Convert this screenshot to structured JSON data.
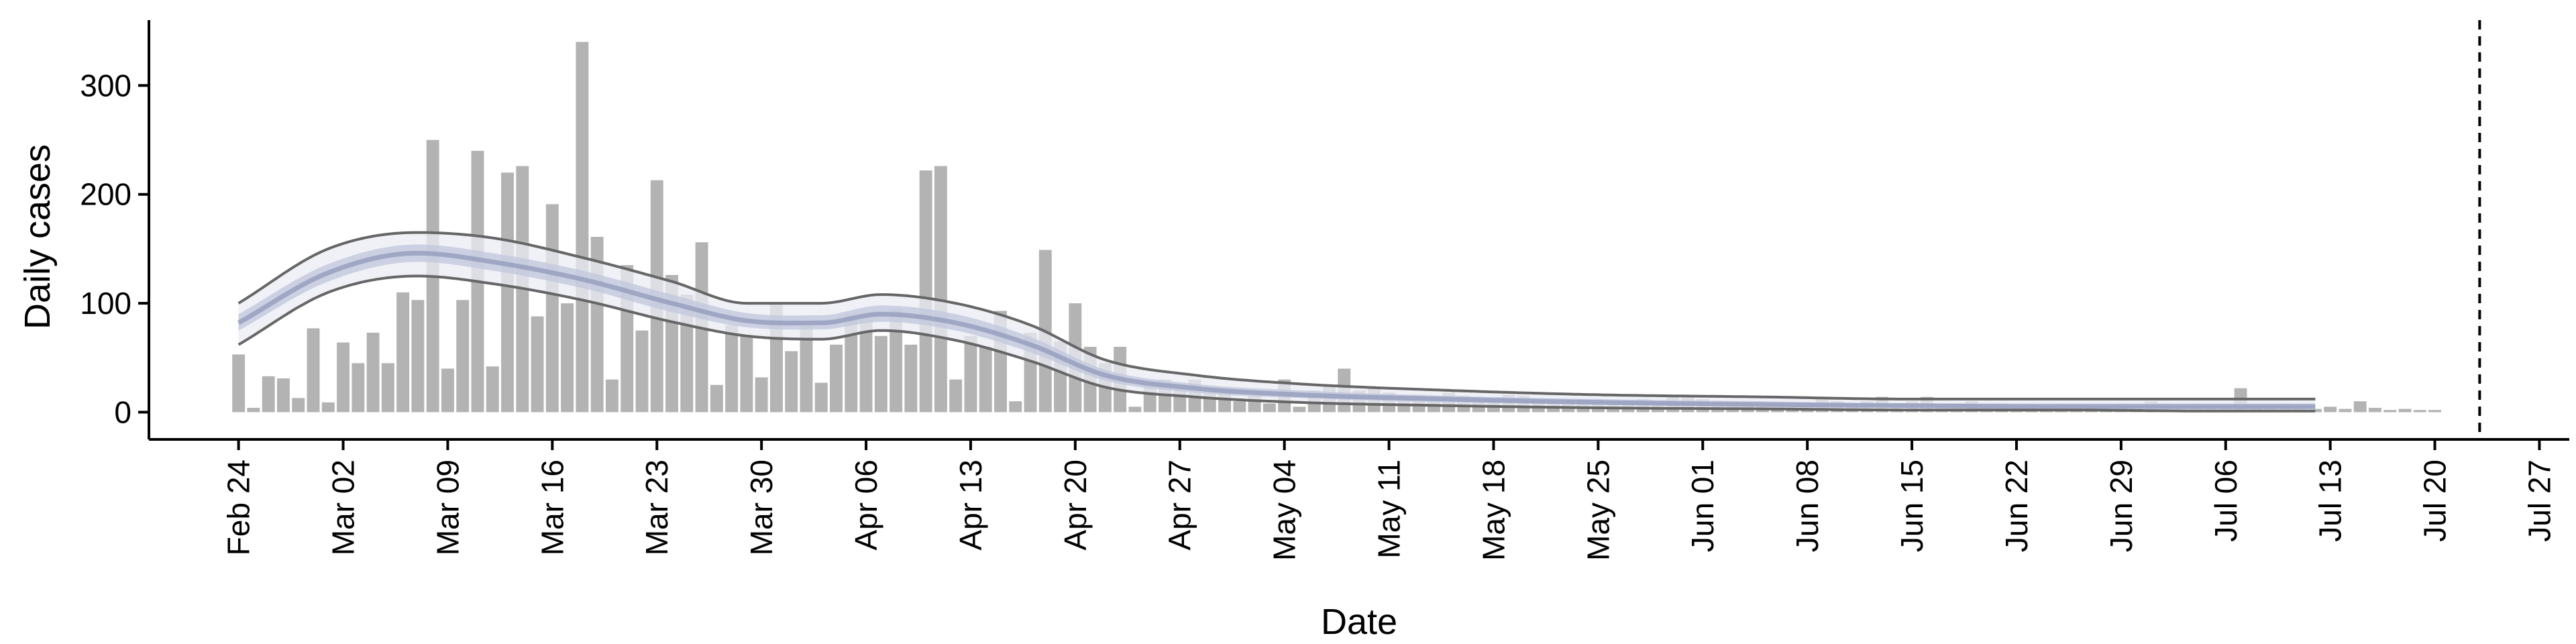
{
  "chart_data": {
    "type": "bar",
    "title": "",
    "xlabel": "Date",
    "ylabel": "Daily cases",
    "ylim": [
      -25,
      360
    ],
    "xlim": [
      "2020-02-18",
      "2020-07-29"
    ],
    "y_ticks": [
      0,
      100,
      200,
      300
    ],
    "x_ticks": [
      {
        "date": "2020-02-24",
        "label": "Feb 24"
      },
      {
        "date": "2020-03-02",
        "label": "Mar 02"
      },
      {
        "date": "2020-03-09",
        "label": "Mar 09"
      },
      {
        "date": "2020-03-16",
        "label": "Mar 16"
      },
      {
        "date": "2020-03-23",
        "label": "Mar 23"
      },
      {
        "date": "2020-03-30",
        "label": "Mar 30"
      },
      {
        "date": "2020-04-06",
        "label": "Apr 06"
      },
      {
        "date": "2020-04-13",
        "label": "Apr 13"
      },
      {
        "date": "2020-04-20",
        "label": "Apr 20"
      },
      {
        "date": "2020-04-27",
        "label": "Apr 27"
      },
      {
        "date": "2020-05-04",
        "label": "May 04"
      },
      {
        "date": "2020-05-11",
        "label": "May 11"
      },
      {
        "date": "2020-05-18",
        "label": "May 18"
      },
      {
        "date": "2020-05-25",
        "label": "May 25"
      },
      {
        "date": "2020-06-01",
        "label": "Jun 01"
      },
      {
        "date": "2020-06-08",
        "label": "Jun 08"
      },
      {
        "date": "2020-06-15",
        "label": "Jun 15"
      },
      {
        "date": "2020-06-22",
        "label": "Jun 22"
      },
      {
        "date": "2020-06-29",
        "label": "Jun 29"
      },
      {
        "date": "2020-07-06",
        "label": "Jul 06"
      },
      {
        "date": "2020-07-13",
        "label": "Jul 13"
      },
      {
        "date": "2020-07-20",
        "label": "Jul 20"
      },
      {
        "date": "2020-07-27",
        "label": "Jul 27"
      }
    ],
    "bars": {
      "start_date": "2020-02-24",
      "color": "#b3b3b3",
      "values": [
        53,
        4,
        33,
        31,
        13,
        77,
        9,
        64,
        45,
        73,
        45,
        110,
        103,
        250,
        40,
        103,
        240,
        42,
        220,
        226,
        88,
        191,
        100,
        340,
        161,
        30,
        135,
        75,
        213,
        126,
        108,
        156,
        25,
        80,
        70,
        32,
        100,
        56,
        80,
        27,
        62,
        90,
        85,
        70,
        95,
        62,
        222,
        226,
        30,
        70,
        60,
        93,
        10,
        73,
        149,
        65,
        100,
        60,
        45,
        60,
        5,
        25,
        30,
        22,
        30,
        20,
        20,
        10,
        15,
        8,
        30,
        5,
        20,
        25,
        40,
        20,
        22,
        18,
        15,
        16,
        12,
        18,
        15,
        10,
        12,
        16,
        15,
        12,
        10,
        10,
        12,
        10,
        10,
        8,
        12,
        10,
        16,
        14,
        12,
        8,
        10,
        8,
        10,
        8,
        7,
        8,
        12,
        10,
        8,
        10,
        14,
        8,
        10,
        14,
        6,
        8,
        10,
        6,
        8,
        5,
        8,
        6,
        8,
        7,
        5,
        6,
        8,
        6,
        10,
        8,
        6,
        8,
        5,
        4,
        22,
        4,
        5,
        8,
        5,
        3,
        5,
        3,
        10,
        4,
        2,
        3,
        2,
        2
      ]
    },
    "estimate": {
      "start_date": "2020-02-24",
      "end_date": "2020-07-12",
      "median_color": "#8d96b8",
      "inner_band_color": "#c2c8dc",
      "outer_band_color": "#e9ecf4",
      "bound_line_color": "#666666",
      "anchors_x": [
        "2020-02-24",
        "2020-03-01",
        "2020-03-07",
        "2020-03-12",
        "2020-03-18",
        "2020-03-24",
        "2020-03-29",
        "2020-04-03",
        "2020-04-07",
        "2020-04-12",
        "2020-04-17",
        "2020-04-22",
        "2020-04-28",
        "2020-05-05",
        "2020-05-15",
        "2020-05-25",
        "2020-06-05",
        "2020-06-15",
        "2020-06-25",
        "2020-07-05",
        "2020-07-12"
      ],
      "median": [
        82,
        128,
        146,
        138,
        122,
        100,
        84,
        82,
        90,
        82,
        62,
        34,
        22,
        16,
        12,
        9,
        7,
        6,
        5,
        5,
        5
      ],
      "inner_lo": [
        75,
        120,
        138,
        130,
        114,
        92,
        78,
        76,
        83,
        75,
        55,
        29,
        18,
        13,
        9,
        7,
        5,
        4,
        4,
        3,
        3
      ],
      "inner_hi": [
        90,
        136,
        154,
        146,
        130,
        108,
        91,
        89,
        98,
        90,
        69,
        39,
        26,
        20,
        15,
        12,
        10,
        8,
        8,
        8,
        8
      ],
      "outer_lo": [
        62,
        110,
        125,
        118,
        103,
        83,
        70,
        67,
        75,
        66,
        47,
        23,
        14,
        9,
        6,
        4,
        3,
        2,
        2,
        1,
        1
      ],
      "outer_hi": [
        100,
        150,
        165,
        160,
        142,
        120,
        100,
        100,
        108,
        100,
        80,
        48,
        34,
        26,
        20,
        16,
        14,
        12,
        12,
        12,
        12
      ]
    },
    "reference_line": {
      "date": "2020-07-23",
      "style": "dashed",
      "color": "#000000"
    }
  }
}
